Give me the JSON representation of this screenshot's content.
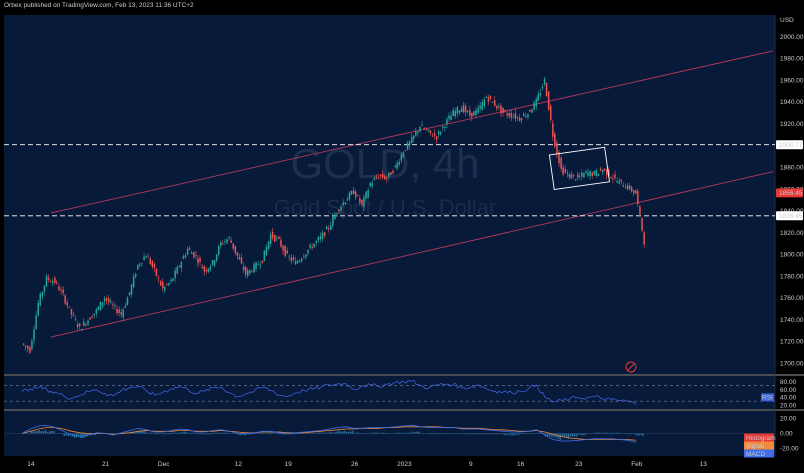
{
  "header": {
    "text": "Orbex published on TradingView.com, Feb 13, 2023 11:36 UTC+2"
  },
  "colors": {
    "background": "#071a3a",
    "up_candle": "#26a69a",
    "down_candle": "#ef5350",
    "channel": "#b8395b",
    "rsi_line": "#3c5fd6",
    "macd_line": "#3f6ee8",
    "signal_line": "#f08a3c",
    "histogram": "#2a6f9a",
    "price_badge": "#e53935"
  },
  "watermark": {
    "symbol": "GOLD, 4h",
    "subtitle": "Gold Spot / U.S. Dollar"
  },
  "chart_data": [
    {
      "type": "candlestick",
      "currency": "USD",
      "x_ticks": [
        "14",
        "21",
        "Dec",
        "12",
        "19",
        "26",
        "2023",
        "9",
        "16",
        "23",
        "Feb",
        "13"
      ],
      "ylim": [
        1690,
        2020
      ],
      "y_ticks": [
        1700,
        1720,
        1740,
        1760,
        1780,
        1800,
        1820,
        1840,
        1860,
        1880,
        1900,
        1920,
        1940,
        1960,
        1980,
        2000
      ],
      "y_tick_labels": [
        "1700.00",
        "1720.00",
        "1740.00",
        "1760.00",
        "1780.00",
        "1800.00",
        "1820.00",
        "1840.00",
        "1860.00",
        "1880.00",
        "1900.00",
        "1920.00",
        "1940.00",
        "1960.00",
        "1980.00",
        "2000.00"
      ],
      "close_path": [
        [
          0,
          1712
        ],
        [
          1,
          1755
        ],
        [
          2,
          1778
        ],
        [
          3,
          1775
        ],
        [
          4,
          1762
        ],
        [
          5,
          1745
        ],
        [
          6,
          1732
        ],
        [
          7,
          1740
        ],
        [
          8,
          1748
        ],
        [
          9,
          1760
        ],
        [
          10,
          1752
        ],
        [
          11,
          1745
        ],
        [
          12,
          1765
        ],
        [
          13,
          1790
        ],
        [
          14,
          1800
        ],
        [
          15,
          1785
        ],
        [
          16,
          1768
        ],
        [
          17,
          1775
        ],
        [
          18,
          1790
        ],
        [
          19,
          1805
        ],
        [
          20,
          1798
        ],
        [
          21,
          1785
        ],
        [
          22,
          1792
        ],
        [
          23,
          1810
        ],
        [
          24,
          1815
        ],
        [
          25,
          1798
        ],
        [
          26,
          1782
        ],
        [
          27,
          1788
        ],
        [
          28,
          1795
        ],
        [
          29,
          1818
        ],
        [
          30,
          1812
        ],
        [
          31,
          1798
        ],
        [
          32,
          1792
        ],
        [
          33,
          1800
        ],
        [
          34,
          1808
        ],
        [
          35,
          1815
        ],
        [
          36,
          1825
        ],
        [
          37,
          1840
        ],
        [
          38,
          1850
        ],
        [
          39,
          1858
        ],
        [
          40,
          1845
        ],
        [
          41,
          1865
        ],
        [
          42,
          1872
        ],
        [
          43,
          1870
        ],
        [
          44,
          1880
        ],
        [
          45,
          1895
        ],
        [
          46,
          1905
        ],
        [
          47,
          1918
        ],
        [
          48,
          1912
        ],
        [
          49,
          1908
        ],
        [
          50,
          1920
        ],
        [
          51,
          1930
        ],
        [
          52,
          1935
        ],
        [
          53,
          1928
        ],
        [
          54,
          1932
        ],
        [
          55,
          1945
        ],
        [
          56,
          1938
        ],
        [
          57,
          1930
        ],
        [
          58,
          1928
        ],
        [
          59,
          1925
        ],
        [
          60,
          1930
        ],
        [
          61,
          1940
        ],
        [
          62,
          1960
        ],
        [
          63,
          1910
        ],
        [
          64,
          1878
        ],
        [
          65,
          1872
        ],
        [
          66,
          1870
        ],
        [
          67,
          1875
        ],
        [
          68,
          1874
        ],
        [
          69,
          1878
        ],
        [
          70,
          1872
        ],
        [
          71,
          1866
        ],
        [
          72,
          1862
        ],
        [
          73,
          1856
        ],
        [
          74,
          1812
        ]
      ],
      "channel_upper": [
        [
          3,
          1838
        ],
        [
          90,
          1987
        ]
      ],
      "channel_lower": [
        [
          3,
          1724
        ],
        [
          90,
          1876
        ]
      ],
      "support_lines": [
        {
          "value": 1900.77,
          "label": "1900.77"
        },
        {
          "value": 1835.45,
          "label": "1835.45"
        }
      ],
      "last_price": {
        "value": 1856.45,
        "label": "1856.45"
      },
      "pattern_box": {
        "from_index": 64,
        "to_index": 70,
        "low": 1860,
        "high": 1892
      }
    },
    {
      "type": "line",
      "name_label": "RSI",
      "ylim": [
        10,
        95
      ],
      "y_ticks": [
        20,
        40,
        60,
        80
      ],
      "y_tick_labels": [
        "20.00",
        "40.00",
        "60.00",
        "80.00"
      ],
      "guide_levels": [
        70,
        30
      ],
      "current_value": 40,
      "values": [
        55,
        62,
        66,
        60,
        52,
        44,
        38,
        46,
        55,
        60,
        50,
        44,
        58,
        66,
        68,
        56,
        46,
        54,
        62,
        68,
        60,
        50,
        56,
        64,
        66,
        52,
        42,
        50,
        56,
        66,
        58,
        46,
        42,
        52,
        58,
        62,
        66,
        72,
        74,
        76,
        60,
        70,
        72,
        68,
        74,
        78,
        80,
        82,
        70,
        64,
        72,
        74,
        74,
        64,
        66,
        72,
        62,
        56,
        54,
        52,
        56,
        62,
        72,
        40,
        28,
        32,
        36,
        40,
        38,
        42,
        36,
        34,
        32,
        30,
        22
      ]
    },
    {
      "type": "histogram",
      "name_labels": [
        "Histogram",
        "Signal",
        "MACD"
      ],
      "ylim": [
        -30,
        30
      ],
      "y_ticks": [
        20,
        0,
        -20
      ],
      "y_tick_labels": [
        "20.00",
        "0.00",
        "-20.00"
      ],
      "macd": [
        0,
        6,
        10,
        11,
        8,
        3,
        -2,
        -4,
        -2,
        1,
        0,
        -2,
        1,
        4,
        7,
        5,
        2,
        2,
        4,
        6,
        5,
        2,
        2,
        4,
        5,
        3,
        0,
        0,
        1,
        3,
        3,
        1,
        0,
        1,
        2,
        3,
        4,
        6,
        8,
        9,
        7,
        7,
        8,
        8,
        8,
        9,
        10,
        11,
        9,
        8,
        8,
        8,
        8,
        6,
        6,
        6,
        5,
        4,
        3,
        2,
        2,
        3,
        5,
        -2,
        -8,
        -10,
        -10,
        -9,
        -8,
        -7,
        -7,
        -7,
        -8,
        -9,
        -12
      ],
      "signal": [
        0,
        3,
        6,
        8,
        8,
        6,
        3,
        1,
        0,
        0,
        0,
        -1,
        0,
        1,
        3,
        4,
        3,
        3,
        3,
        4,
        4,
        3,
        3,
        3,
        4,
        3,
        2,
        1,
        1,
        2,
        2,
        2,
        1,
        1,
        1,
        2,
        3,
        4,
        5,
        6,
        6,
        7,
        7,
        7,
        8,
        8,
        9,
        9,
        9,
        9,
        9,
        8,
        8,
        7,
        7,
        7,
        6,
        5,
        5,
        4,
        3,
        3,
        4,
        2,
        -1,
        -4,
        -6,
        -7,
        -8,
        -8,
        -8,
        -8,
        -8,
        -8,
        -9
      ]
    }
  ]
}
